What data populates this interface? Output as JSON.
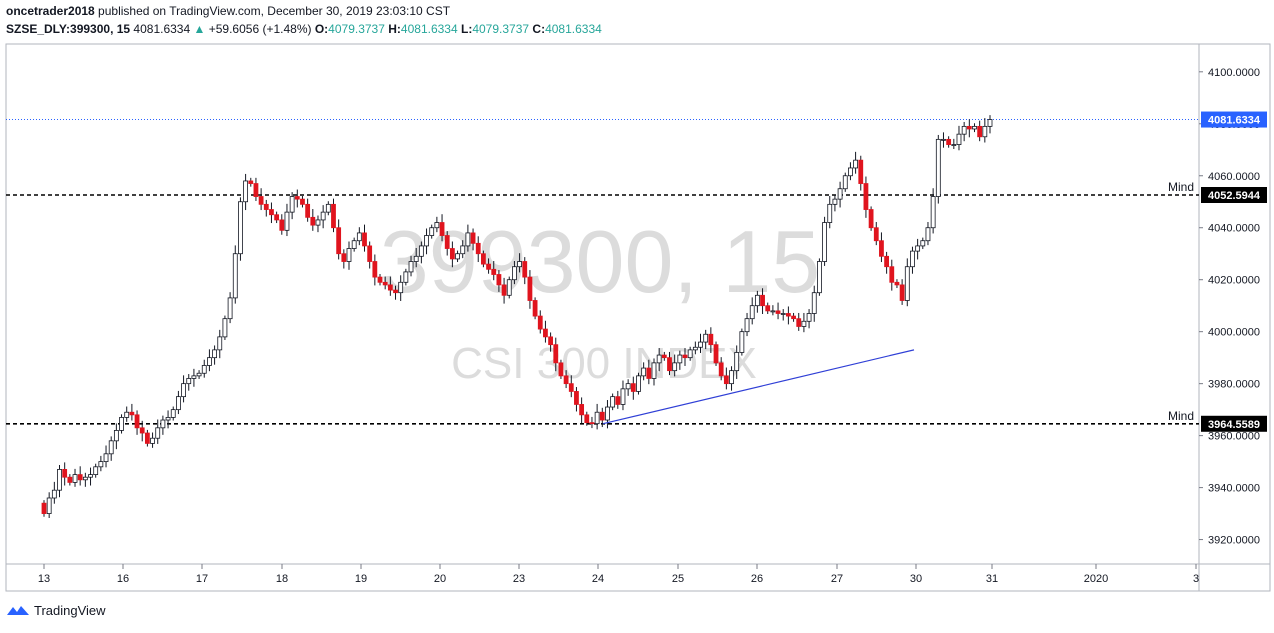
{
  "header": {
    "author": "oncetrader2018",
    "published_text": " published on TradingView.com, December 30, 2019 23:03:10 CST",
    "symbol": "SZSE_DLY:399300, 15",
    "last": "4081.6334",
    "change": "+59.6056 (+1.48%)",
    "o_label": "O:",
    "o_value": "4079.3737",
    "h_label": "H:",
    "h_value": "4081.6334",
    "l_label": "L:",
    "l_value": "4079.3737",
    "c_label": "C:",
    "c_value": "4081.6334"
  },
  "watermark": {
    "line1": "399300, 15",
    "line2": "CSI 300 INDEX"
  },
  "footer": {
    "brand": "TradingView"
  },
  "colors": {
    "up": "#ffffff",
    "down": "#e0141e",
    "wick": "#131722",
    "trendline": "#2f3fd6",
    "last_price_bg": "#2962ff"
  },
  "chart_data": {
    "type": "candlestick",
    "y_ticks": [
      "4100.0000",
      "4080.0000",
      "4060.0000",
      "4040.0000",
      "4020.0000",
      "4000.0000",
      "3980.0000",
      "3960.0000",
      "3940.0000",
      "3920.0000"
    ],
    "x_ticks": [
      "13",
      "16",
      "17",
      "18",
      "19",
      "20",
      "23",
      "24",
      "25",
      "26",
      "27",
      "30",
      "31",
      "2020",
      "3"
    ],
    "ylim": [
      3913,
      4106
    ],
    "current_price": {
      "value": 4081.6334,
      "label": "4081.6334"
    },
    "levels": [
      {
        "name": "Mind",
        "value": 4052.5944,
        "label": "4052.5944"
      },
      {
        "name": "Mind",
        "value": 3964.5589,
        "label": "3964.5589"
      }
    ],
    "trendline": {
      "from": {
        "session": "24",
        "bar": 0,
        "value": 3964.6
      },
      "to": {
        "session": "30",
        "bar": 0,
        "value": 3993
      }
    },
    "closes": [
      3930,
      3936,
      3939,
      3947,
      3944,
      3942,
      3945,
      3943,
      3944,
      3945,
      3948,
      3950,
      3953,
      3958,
      3962,
      3967,
      3969,
      3968,
      3963,
      3961,
      3957,
      3959,
      3963,
      3966,
      3967,
      3970,
      3975,
      3980,
      3982,
      3983,
      3984,
      3987,
      3990,
      3993,
      3998,
      4005,
      4013,
      4030,
      4050,
      4058,
      4057,
      4052,
      4049,
      4047,
      4045,
      4043,
      4039,
      4046,
      4052,
      4051,
      4049,
      4044,
      4041,
      4043,
      4046,
      4049,
      4040,
      4030,
      4027,
      4032,
      4035,
      4038,
      4033,
      4027,
      4021,
      4019,
      4018,
      4016,
      4015,
      4019,
      4023,
      4027,
      4029,
      4033,
      4037,
      4040,
      4042,
      4037,
      4032,
      4028,
      4030,
      4033,
      4038,
      4034,
      4030,
      4026,
      4024,
      4022,
      4018,
      4014,
      4020,
      4025,
      4027,
      4021,
      4012,
      4006,
      4001,
      3998,
      3995,
      3988,
      3983,
      3980,
      3977,
      3972,
      3968,
      3965,
      3964.6,
      3969,
      3966,
      3971,
      3975,
      3972,
      3978,
      3980,
      3977,
      3983,
      3986,
      3982,
      3988,
      3991,
      3990,
      3985,
      3988,
      3991,
      3990,
      3993,
      3994,
      3996,
      3999,
      3995,
      3988,
      3983,
      3980,
      3985,
      3992,
      4000,
      4005,
      4010,
      4014,
      4010,
      4008,
      4008,
      4007,
      4007,
      4006,
      4005,
      4002,
      4004,
      4007,
      4015,
      4027,
      4042,
      4049,
      4051,
      4055,
      4060,
      4063,
      4066,
      4057,
      4047,
      4040,
      4035,
      4029,
      4025,
      4019,
      4018,
      4012,
      4025,
      4031,
      4033,
      4035,
      4040,
      4052,
      4074,
      4074,
      4072,
      4072,
      4076,
      4079,
      4078,
      4079,
      4075,
      4079,
      4081.6334
    ]
  }
}
